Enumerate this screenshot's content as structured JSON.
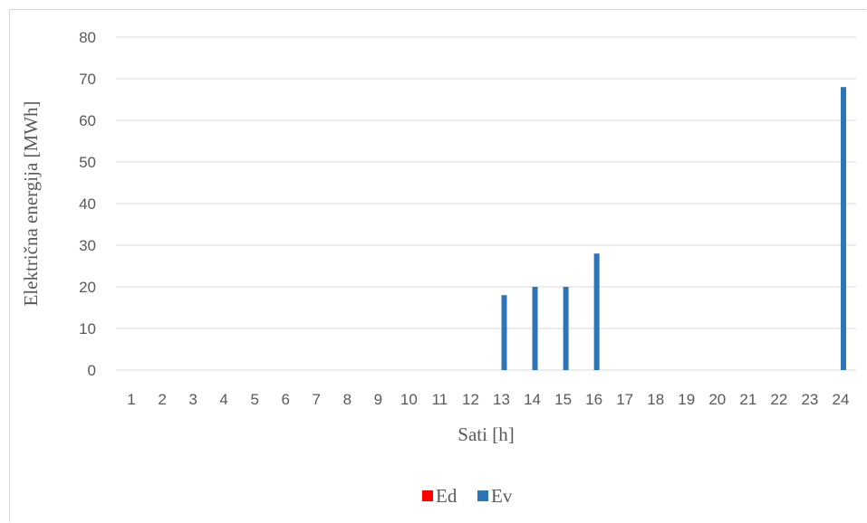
{
  "chart_data": {
    "type": "bar",
    "categories": [
      "1",
      "2",
      "3",
      "4",
      "5",
      "6",
      "7",
      "8",
      "9",
      "10",
      "11",
      "12",
      "13",
      "14",
      "15",
      "16",
      "17",
      "18",
      "19",
      "20",
      "21",
      "22",
      "23",
      "24"
    ],
    "series": [
      {
        "name": "Ed",
        "color": "#ff0000",
        "values": [
          0,
          0,
          0,
          0,
          0,
          0,
          0,
          0,
          0,
          0,
          0,
          0,
          0,
          0,
          0,
          0,
          0,
          0,
          0,
          0,
          0,
          0,
          0,
          0
        ]
      },
      {
        "name": "Ev",
        "color": "#2e75b6",
        "values": [
          0,
          0,
          0,
          0,
          0,
          0,
          0,
          0,
          0,
          0,
          0,
          0,
          18,
          20,
          20,
          28,
          0,
          0,
          0,
          0,
          0,
          0,
          0,
          68
        ]
      }
    ],
    "xlabel": "Sati [h]",
    "ylabel": "Električna energija [MWh]",
    "ylim": [
      0,
      80
    ],
    "yticks": [
      0,
      10,
      20,
      30,
      40,
      50,
      60,
      70,
      80
    ],
    "grid": true,
    "gridColor": "#d9d9d9",
    "legend": "bottom"
  }
}
